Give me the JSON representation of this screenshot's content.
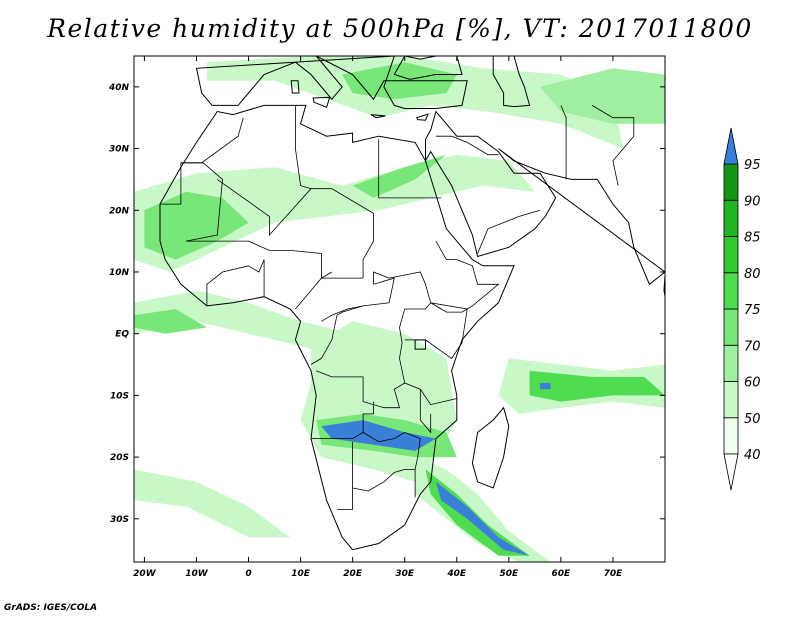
{
  "title": "Relative humidity at 500hPa [%], VT: 2017011800",
  "footer": "GrADS: IGES/COLA",
  "map": {
    "lon_range": [
      -22,
      80
    ],
    "lat_range": [
      -37,
      45
    ],
    "lon_ticks": [
      {
        "lon": -20,
        "label": "20W"
      },
      {
        "lon": -10,
        "label": "10W"
      },
      {
        "lon": 0,
        "label": "0"
      },
      {
        "lon": 10,
        "label": "10E"
      },
      {
        "lon": 20,
        "label": "20E"
      },
      {
        "lon": 30,
        "label": "30E"
      },
      {
        "lon": 40,
        "label": "40E"
      },
      {
        "lon": 50,
        "label": "50E"
      },
      {
        "lon": 60,
        "label": "60E"
      },
      {
        "lon": 70,
        "label": "70E"
      }
    ],
    "lat_ticks": [
      {
        "lat": 40,
        "label": "40N"
      },
      {
        "lat": 30,
        "label": "30N"
      },
      {
        "lat": 20,
        "label": "20N"
      },
      {
        "lat": 10,
        "label": "10N"
      },
      {
        "lat": 0,
        "label": "EQ"
      },
      {
        "lat": -10,
        "label": "10S"
      },
      {
        "lat": -20,
        "label": "20S"
      },
      {
        "lat": -30,
        "label": "30S"
      }
    ]
  },
  "colorbar": {
    "levels": [
      "40",
      "50",
      "60",
      "70",
      "75",
      "80",
      "85",
      "90",
      "95"
    ],
    "colors": [
      "#f0fff0",
      "#c8f7c8",
      "#a0eea0",
      "#78e678",
      "#50dc50",
      "#32c832",
      "#23b423",
      "#149614",
      "#3a7fd8"
    ]
  }
}
